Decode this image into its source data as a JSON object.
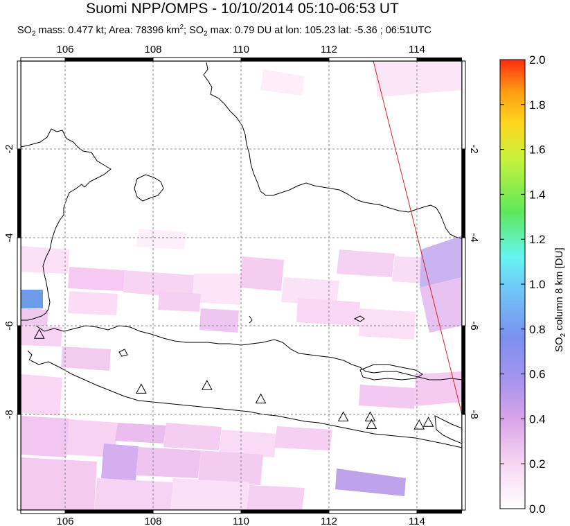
{
  "header": {
    "title": "Suomi NPP/OMPS - 10/10/2014 05:10-06:53 UT",
    "subtitle": {
      "so2_prefix": "SO",
      "so2_sub": "2",
      "mass_text": " mass: 0.477 kt; Area: 78396 km",
      "area_sup": "2",
      "sep_text": "; SO",
      "so2_sub_2": "2",
      "max_text": " max: 0.79 DU at lon: 105.23 lat: -5.36 ; 06:51UTC"
    }
  },
  "map": {
    "lon_range": [
      105,
      115
    ],
    "lat_range": [
      -10,
      0
    ],
    "lon_ticks": [
      "106",
      "108",
      "110",
      "112",
      "114"
    ],
    "lat_ticks": [
      "-2",
      "-4",
      "-6",
      "-8"
    ],
    "volcanoes": [
      {
        "lon": 105.42,
        "lat": -6.1
      },
      {
        "lon": 107.73,
        "lat": -7.32
      },
      {
        "lon": 109.22,
        "lat": -7.24
      },
      {
        "lon": 110.44,
        "lat": -7.54
      },
      {
        "lon": 112.31,
        "lat": -7.94
      },
      {
        "lon": 112.92,
        "lat": -7.94
      },
      {
        "lon": 112.95,
        "lat": -8.11
      },
      {
        "lon": 114.03,
        "lat": -8.12
      },
      {
        "lon": 114.24,
        "lat": -8.06
      }
    ]
  },
  "colorbar": {
    "title_prefix": "SO",
    "title_sub": "2",
    "title_suffix": " column 8 km [DU]",
    "tick_labels": [
      "0.0",
      "0.2",
      "0.4",
      "0.6",
      "0.8",
      "1.0",
      "1.2",
      "1.4",
      "1.6",
      "1.8",
      "2.0"
    ],
    "min": 0,
    "max": 2,
    "colors": [
      "#ffffff",
      "#f7d6f2",
      "#d9a3e9",
      "#a995ee",
      "#7c8fef",
      "#6ecdf7",
      "#66f5f2",
      "#5ee85c",
      "#c8f23a",
      "#ffd51e",
      "#ff9b12",
      "#ff2a10"
    ]
  }
}
